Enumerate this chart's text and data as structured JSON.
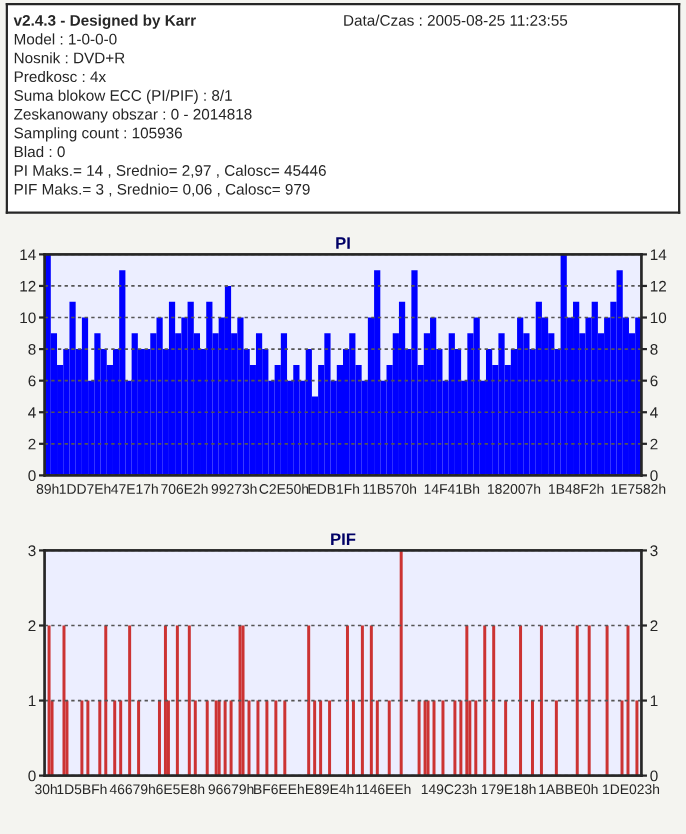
{
  "chart_data": [
    {
      "type": "other",
      "annotations": [
        "v2.4.3 - Designed by Karr",
        "Data/Czas : 2005-08-25 11:23:55",
        "Model : 1-0-0-0",
        "Nosnik : DVD+R",
        "Predkosc : 4x",
        "Suma blokow ECC (PI/PIF) : 8/1",
        "Zeskanowany obszar : 0 - 2014818",
        "Sampling count : 105936",
        "Blad : 0",
        "PI Maks.= 14 , Srednio= 2,97 , Calosc= 45446",
        "PIF Maks.= 3 , Srednio= 0,06 , Calosc= 979"
      ]
    },
    {
      "type": "bar",
      "title": "PI",
      "color": "#0000ff",
      "categories": [
        "89h",
        null,
        null,
        null,
        null,
        null,
        "1DD7Eh",
        null,
        null,
        null,
        null,
        null,
        null,
        null,
        "47E17h",
        null,
        null,
        null,
        null,
        null,
        null,
        null,
        "706E2h",
        null,
        null,
        null,
        null,
        null,
        null,
        null,
        "99273h",
        null,
        null,
        null,
        null,
        null,
        null,
        null,
        "C2E50h",
        null,
        null,
        null,
        null,
        null,
        null,
        null,
        "EDB1Fh",
        null,
        null,
        null,
        null,
        null,
        null,
        null,
        null,
        "11B570h",
        null,
        null,
        null,
        null,
        null,
        null,
        null,
        null,
        null,
        "14F41Bh",
        null,
        null,
        null,
        null,
        null,
        null,
        null,
        null,
        null,
        "182007h",
        null,
        null,
        null,
        null,
        null,
        null,
        null,
        null,
        null,
        "1B48F2h",
        null,
        null,
        null,
        null,
        null,
        null,
        null,
        null,
        null,
        "1E7582h"
      ],
      "values": [
        14,
        9,
        7,
        8,
        11,
        8,
        10,
        6,
        9,
        8,
        7,
        8,
        13,
        6,
        9,
        8,
        8,
        9,
        10,
        8,
        11,
        9,
        10,
        11,
        9,
        8,
        11,
        9,
        10,
        12,
        9,
        10,
        8,
        7,
        9,
        8,
        6,
        7,
        9,
        6,
        7,
        6,
        8,
        5,
        7,
        9,
        6,
        7,
        8,
        9,
        7,
        6,
        10,
        13,
        6,
        7,
        9,
        11,
        8,
        13,
        7,
        9,
        10,
        8,
        6,
        9,
        8,
        6,
        9,
        10,
        6,
        8,
        7,
        9,
        7,
        8,
        10,
        9,
        8,
        11,
        10,
        9,
        8,
        14,
        10,
        11,
        9,
        10,
        11,
        9,
        10,
        11,
        13,
        10,
        9,
        10
      ],
      "ylim": [
        0,
        14
      ],
      "yticks": [
        0,
        2,
        4,
        6,
        8,
        10,
        12,
        14
      ],
      "y2lim": [
        0,
        14
      ],
      "y2ticks": [
        0,
        2,
        4,
        6,
        8,
        10,
        12,
        14
      ],
      "grid": "y"
    },
    {
      "type": "bar",
      "title": "PIF",
      "color": "#cc3333",
      "categories": [
        "30h",
        null,
        null,
        null,
        null,
        null,
        null,
        null,
        null,
        null,
        null,
        null,
        "1D5BFh",
        null,
        null,
        null,
        null,
        null,
        null,
        null,
        null,
        null,
        null,
        null,
        null,
        null,
        null,
        null,
        null,
        "46679h",
        null,
        null,
        null,
        null,
        null,
        null,
        null,
        null,
        null,
        null,
        null,
        null,
        null,
        null,
        null,
        "6E5E8h",
        null,
        null,
        null,
        null,
        null,
        null,
        null,
        null,
        null,
        null,
        null,
        null,
        null,
        null,
        null,
        null,
        "96679h",
        null,
        null,
        null,
        null,
        null,
        null,
        null,
        null,
        null,
        null,
        null,
        null,
        null,
        null,
        null,
        "BF6EEh",
        null,
        null,
        null,
        null,
        null,
        null,
        null,
        null,
        null,
        null,
        null,
        null,
        null,
        null,
        null,
        null,
        "E89E4h",
        null,
        null,
        null,
        null,
        null,
        null,
        null,
        null,
        null,
        null,
        null,
        null,
        null,
        null,
        null,
        null,
        null,
        "1146EEh",
        null,
        null,
        null,
        null,
        null,
        null,
        null,
        null,
        null,
        null,
        null,
        null,
        null,
        null,
        null,
        null,
        null,
        null,
        null,
        null,
        null,
        "149C23h",
        null,
        null,
        null,
        null,
        null,
        null,
        null,
        null,
        null,
        null,
        null,
        null,
        null,
        null,
        null,
        null,
        null,
        null,
        null,
        "179E18h",
        null,
        null,
        null,
        null,
        null,
        null,
        null,
        null,
        null,
        null,
        null,
        null,
        null,
        null,
        null,
        null,
        null,
        null,
        null,
        "1ABBE0h",
        null,
        null,
        null,
        null,
        null,
        null,
        null,
        null,
        null,
        null,
        null,
        null,
        null,
        null,
        null,
        null,
        null,
        null,
        null,
        null,
        "1DE023h",
        null,
        null,
        null
      ],
      "values": [
        0,
        2,
        1,
        0,
        0,
        0,
        2,
        1,
        0,
        0,
        0,
        0,
        1,
        0,
        1,
        0,
        0,
        0,
        1,
        0,
        2,
        0,
        0,
        1,
        0,
        1,
        0,
        0,
        2,
        0,
        0,
        1,
        0,
        0,
        0,
        0,
        0,
        0,
        1,
        0,
        2,
        1,
        0,
        0,
        2,
        0,
        0,
        0,
        2,
        0,
        1,
        0,
        0,
        0,
        1,
        0,
        0,
        1,
        1,
        0,
        1,
        0,
        1,
        0,
        0,
        2,
        2,
        0,
        1,
        0,
        0,
        1,
        0,
        0,
        1,
        0,
        0,
        1,
        0,
        0,
        1,
        0,
        0,
        0,
        0,
        0,
        0,
        0,
        2,
        0,
        1,
        0,
        1,
        0,
        0,
        1,
        0,
        0,
        0,
        0,
        0,
        2,
        0,
        1,
        0,
        0,
        2,
        0,
        0,
        2,
        0,
        1,
        0,
        0,
        0,
        1,
        0,
        0,
        0,
        3,
        0,
        0,
        0,
        0,
        0,
        1,
        0,
        1,
        1,
        0,
        1,
        0,
        0,
        1,
        0,
        0,
        0,
        1,
        0,
        1,
        0,
        2,
        1,
        0,
        1,
        0,
        0,
        2,
        0,
        0,
        2,
        0,
        0,
        0,
        1,
        0,
        0,
        0,
        0,
        2,
        0,
        0,
        0,
        1,
        0,
        0,
        2,
        0,
        0,
        0,
        0,
        1,
        0,
        0,
        0,
        0,
        0,
        0,
        2,
        0,
        0,
        0,
        2,
        0,
        0,
        0,
        0,
        0,
        2,
        0,
        0,
        0,
        0,
        1,
        0,
        2,
        0,
        0,
        1,
        0
      ],
      "ylim": [
        0,
        3
      ],
      "yticks": [
        0,
        1,
        2,
        3
      ],
      "y2lim": [
        0,
        3
      ],
      "y2ticks": [
        0,
        1,
        2,
        3
      ],
      "grid": "y"
    }
  ]
}
